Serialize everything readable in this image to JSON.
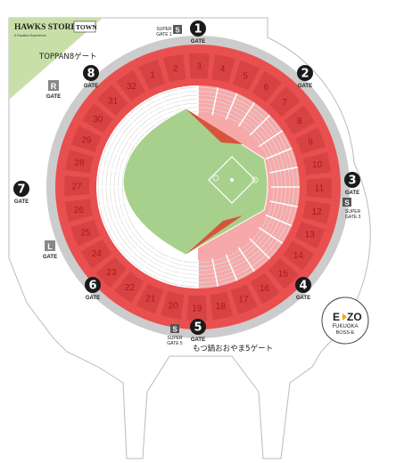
{
  "store": {
    "name": "HAWKS STORE",
    "subname": "TOWN",
    "tagline": "A Fanatics Experience"
  },
  "colors": {
    "outer_ring": "#cccccc",
    "stand_red": "#e94f4f",
    "stand_pink": "#f7a9a9",
    "section_dark": "#c93a3a",
    "field_green": "#a8d08d",
    "gate_badge": "#1a1a1a",
    "store_green": "#c8e0a8"
  },
  "gates": [
    {
      "number": "1",
      "label": "GATE",
      "angle": 0
    },
    {
      "number": "2",
      "label": "GATE",
      "angle": 52
    },
    {
      "number": "3",
      "label": "GATE",
      "angle": 95
    },
    {
      "number": "4",
      "label": "GATE",
      "angle": 140
    },
    {
      "number": "5",
      "label": "GATE",
      "angle": 180
    },
    {
      "number": "6",
      "label": "GATE",
      "angle": 221
    },
    {
      "number": "7",
      "label": "GATE",
      "angle": 265
    },
    {
      "number": "8",
      "label": "GATE",
      "angle": 306
    }
  ],
  "special_gates": [
    {
      "letter": "R",
      "label": "GATE"
    },
    {
      "letter": "L",
      "label": "GATE"
    }
  ],
  "super_gates": [
    {
      "letter": "S",
      "line1": "SUPER",
      "line2": "GATE 1"
    },
    {
      "letter": "S",
      "line1": "SUPER",
      "line2": "GATE 3"
    },
    {
      "letter": "S",
      "line1": "SUPER",
      "line2": "GATE 5"
    }
  ],
  "gate_names": {
    "gate8": "TOPPAN8ゲート",
    "gate5": "もつ鍋おおやま5ゲート"
  },
  "sections": [
    "1",
    "2",
    "3",
    "4",
    "5",
    "6",
    "7",
    "8",
    "9",
    "10",
    "11",
    "12",
    "13",
    "14",
    "15",
    "16",
    "17",
    "18",
    "19",
    "20",
    "21",
    "22",
    "23",
    "24",
    "25",
    "26",
    "27",
    "28",
    "29",
    "30",
    "31",
    "32"
  ],
  "ezo": {
    "line1": "E",
    "line2": "ZO",
    "line3": "FUKUOKA",
    "line4": "BOSS-E"
  }
}
